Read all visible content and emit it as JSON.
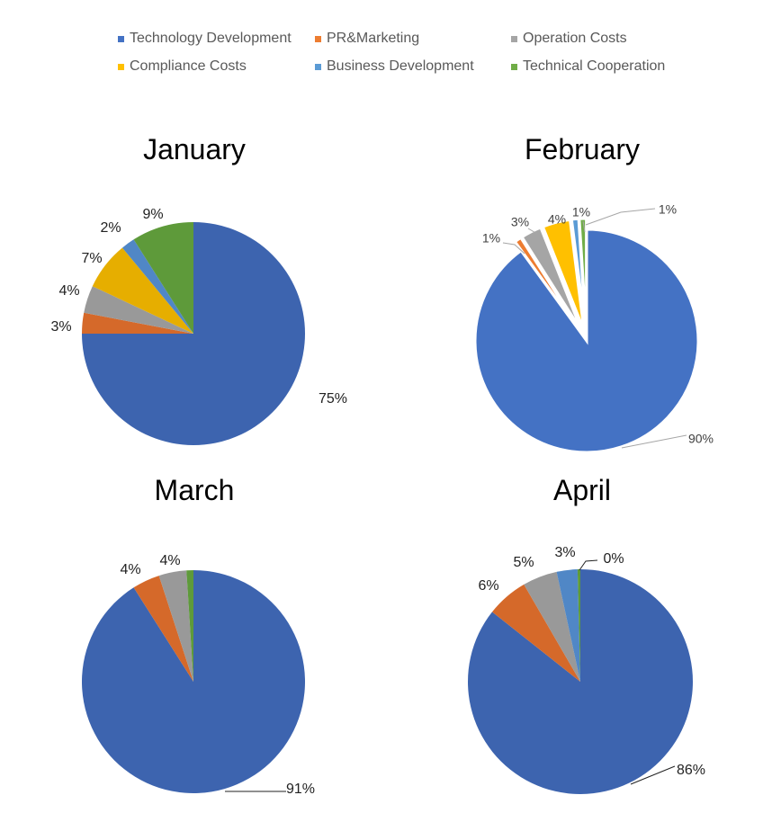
{
  "legend": [
    {
      "label": "Technology Development",
      "color": "#4472C4"
    },
    {
      "label": "PR&Marketing",
      "color": "#ED7D31"
    },
    {
      "label": "Operation Costs",
      "color": "#A5A5A5"
    },
    {
      "label": "Compliance Costs",
      "color": "#FFC000"
    },
    {
      "label": "Business Development",
      "color": "#5B9BD5"
    },
    {
      "label": "Technical Cooperation",
      "color": "#70AD47"
    }
  ],
  "chart_data": [
    {
      "type": "pie",
      "title": "January",
      "slices": [
        {
          "name": "Technology Development",
          "value": 75,
          "label": "75%",
          "color": "#3D64AF"
        },
        {
          "name": "PR&Marketing",
          "value": 3,
          "label": "3%",
          "color": "#D5692A"
        },
        {
          "name": "Operation Costs",
          "value": 4,
          "label": "4%",
          "color": "#999999"
        },
        {
          "name": "Compliance Costs",
          "value": 7,
          "label": "7%",
          "color": "#E6AE00"
        },
        {
          "name": "Business Development",
          "value": 2,
          "label": "2%",
          "color": "#5087C6"
        },
        {
          "name": "Technical Cooperation",
          "value": 9,
          "label": "9%",
          "color": "#5E9A3A"
        }
      ]
    },
    {
      "type": "pie",
      "title": "February",
      "slices": [
        {
          "name": "Technology Development",
          "value": 90,
          "label": "90%",
          "color": "#4472C4"
        },
        {
          "name": "PR&Marketing",
          "value": 1,
          "label": "1%",
          "color": "#ED7D31"
        },
        {
          "name": "Operation Costs",
          "value": 3,
          "label": "3%",
          "color": "#A5A5A5"
        },
        {
          "name": "Compliance Costs",
          "value": 4,
          "label": "4%",
          "color": "#FFC000"
        },
        {
          "name": "Business Development",
          "value": 1,
          "label": "1%",
          "color": "#5B9BD5"
        },
        {
          "name": "Technical Cooperation",
          "value": 1,
          "label": "1%",
          "color": "#70AD47"
        }
      ]
    },
    {
      "type": "pie",
      "title": "March",
      "slices": [
        {
          "name": "Technology Development",
          "value": 91,
          "label": "91%",
          "color": "#3D64AF"
        },
        {
          "name": "PR&Marketing",
          "value": 4,
          "label": "4%",
          "color": "#D5692A"
        },
        {
          "name": "Operation Costs",
          "value": 4,
          "label": "4%",
          "color": "#999999"
        },
        {
          "name": "Technical Cooperation",
          "value": 1,
          "label": "",
          "color": "#5E9A3A"
        }
      ]
    },
    {
      "type": "pie",
      "title": "April",
      "slices": [
        {
          "name": "Technology Development",
          "value": 86,
          "label": "86%",
          "color": "#3D64AF"
        },
        {
          "name": "PR&Marketing",
          "value": 6,
          "label": "6%",
          "color": "#D5692A"
        },
        {
          "name": "Operation Costs",
          "value": 5,
          "label": "5%",
          "color": "#999999"
        },
        {
          "name": "Business Development",
          "value": 3,
          "label": "3%",
          "color": "#5087C6"
        },
        {
          "name": "Technical Cooperation",
          "value": 0.4,
          "label": "0%",
          "color": "#5E9A3A"
        }
      ]
    }
  ]
}
